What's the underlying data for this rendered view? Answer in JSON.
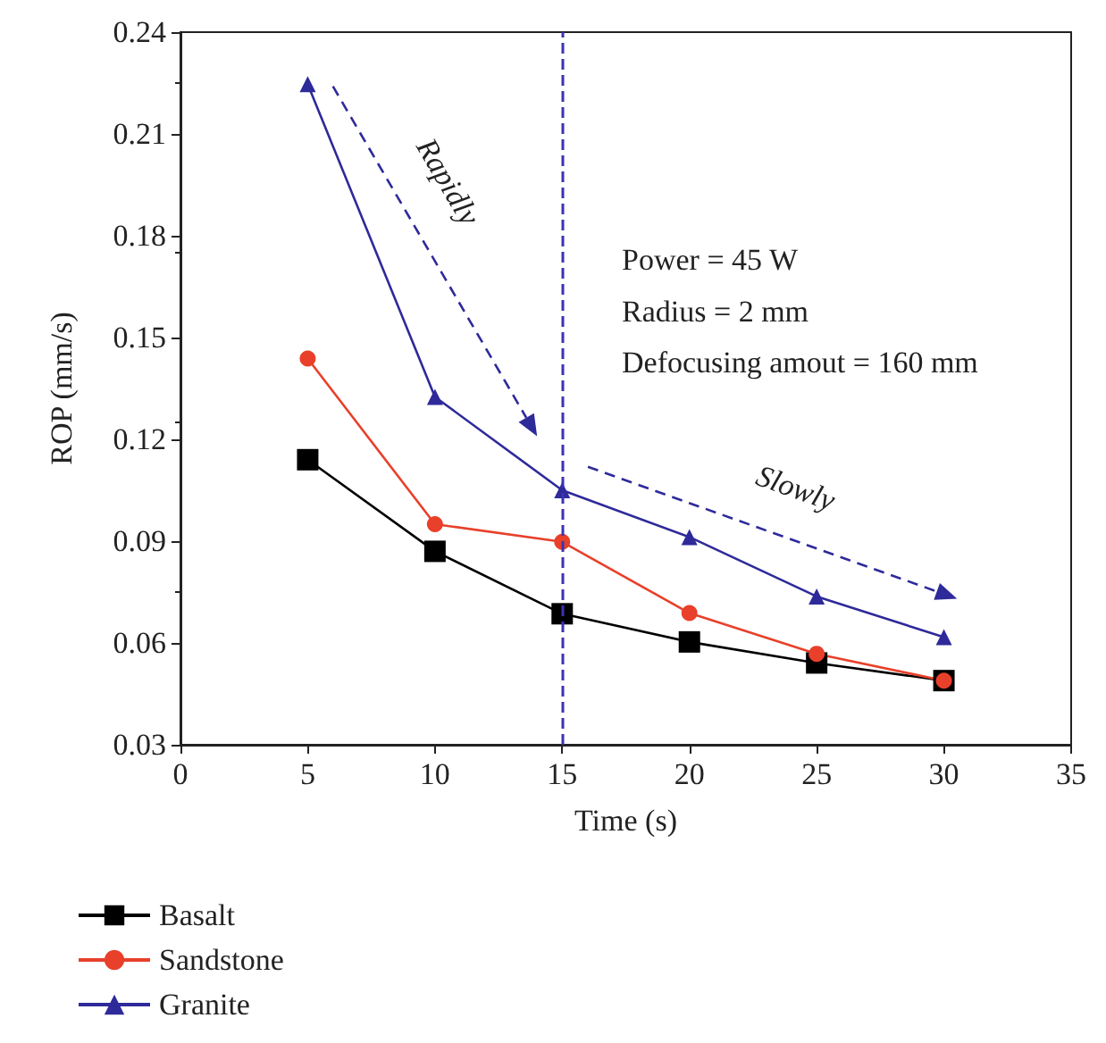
{
  "chart_data": {
    "type": "line",
    "xlabel": "Time (s)",
    "ylabel": "ROP (mm/s)",
    "x": [
      5,
      10,
      15,
      20,
      25,
      30
    ],
    "series": [
      {
        "name": "Basalt",
        "color": "#000000",
        "marker": "square",
        "values": [
          0.114,
          0.087,
          0.0686,
          0.0603,
          0.0541,
          0.0489
        ]
      },
      {
        "name": "Sandstone",
        "color": "#e8402a",
        "marker": "circle",
        "values": [
          0.1438,
          0.095,
          0.0898,
          0.0688,
          0.0568,
          0.0489
        ]
      },
      {
        "name": "Granite",
        "color": "#2e2a9a",
        "marker": "triangle",
        "values": [
          0.2247,
          0.1325,
          0.105,
          0.0912,
          0.0737,
          0.0617
        ]
      }
    ],
    "xlim": [
      0,
      35
    ],
    "xticks": [
      0,
      5,
      10,
      15,
      20,
      25,
      30,
      35
    ],
    "ylim": [
      0.03,
      0.24
    ],
    "yticks": [
      0.03,
      0.06,
      0.09,
      0.12,
      0.15,
      0.18,
      0.21,
      0.24
    ],
    "ref_lines": [
      {
        "axis": "x",
        "value": 15,
        "color": "#3b33b5",
        "line_style": "dashed"
      }
    ],
    "annotations": [
      "Rapidly",
      "Slowly",
      "Power = 45 W",
      "Radius = 2 mm",
      "Defocusing amout = 160 mm"
    ],
    "legend": "bottom left",
    "grid": false,
    "line_style": "solid"
  }
}
